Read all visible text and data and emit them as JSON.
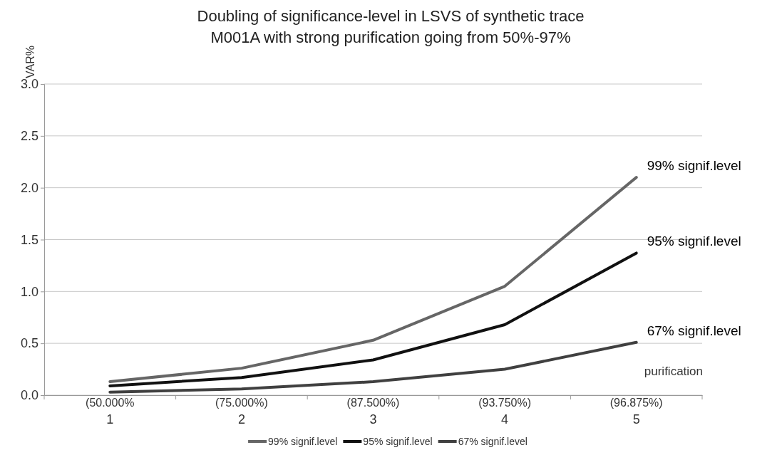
{
  "chart_data": {
    "type": "line",
    "title": "Doubling of significance-level in LSVS of synthetic trace\nM001A with strong purification going from 50%-97%",
    "ylabel": "VAR%",
    "xlabel": "purification",
    "categories": [
      "(50.000%\n1",
      "(75.000%)\n2",
      "(87.500%)\n3",
      "(93.750%)\n4",
      "(96.875%)\n5"
    ],
    "series": [
      {
        "name": "99% signif.level",
        "color": "#666666",
        "values": [
          0.13,
          0.26,
          0.53,
          1.05,
          2.1
        ]
      },
      {
        "name": "95% signif.level",
        "color": "#111111",
        "values": [
          0.09,
          0.17,
          0.34,
          0.68,
          1.37
        ]
      },
      {
        "name": "67% signif.level",
        "color": "#404040",
        "values": [
          0.03,
          0.06,
          0.13,
          0.25,
          0.51
        ]
      }
    ],
    "ylim": [
      0,
      3
    ],
    "yticks": [
      {
        "value": 0,
        "label": "0.0"
      },
      {
        "value": 0.5,
        "label": "0.5"
      },
      {
        "value": 1,
        "label": "1.0"
      },
      {
        "value": 1.5,
        "label": "1.5"
      },
      {
        "value": 2,
        "label": "2.0"
      },
      {
        "value": 2.5,
        "label": "2.5"
      },
      {
        "value": 3,
        "label": "3.0"
      }
    ],
    "grid": "y",
    "legend": "bottom",
    "marker": "none",
    "line_style": "solid"
  }
}
